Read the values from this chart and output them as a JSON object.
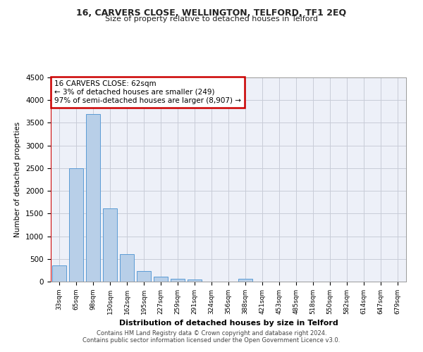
{
  "title": "16, CARVERS CLOSE, WELLINGTON, TELFORD, TF1 2EQ",
  "subtitle": "Size of property relative to detached houses in Telford",
  "xlabel": "Distribution of detached houses by size in Telford",
  "ylabel": "Number of detached properties",
  "categories": [
    "33sqm",
    "65sqm",
    "98sqm",
    "130sqm",
    "162sqm",
    "195sqm",
    "227sqm",
    "259sqm",
    "291sqm",
    "324sqm",
    "356sqm",
    "388sqm",
    "421sqm",
    "453sqm",
    "485sqm",
    "518sqm",
    "550sqm",
    "582sqm",
    "614sqm",
    "647sqm",
    "679sqm"
  ],
  "values": [
    360,
    2500,
    3700,
    1620,
    600,
    235,
    110,
    65,
    40,
    0,
    0,
    55,
    0,
    0,
    0,
    0,
    0,
    0,
    0,
    0,
    0
  ],
  "bar_color": "#b8cfe8",
  "bar_edge_color": "#5b9bd5",
  "vline_color": "#cc0000",
  "annotation_line1": "16 CARVERS CLOSE: 62sqm",
  "annotation_line2": "← 3% of detached houses are smaller (249)",
  "annotation_line3": "97% of semi-detached houses are larger (8,907) →",
  "annotation_box_color": "#cc0000",
  "ylim": [
    0,
    4500
  ],
  "yticks": [
    0,
    500,
    1000,
    1500,
    2000,
    2500,
    3000,
    3500,
    4000,
    4500
  ],
  "background_color": "#edf0f8",
  "grid_color": "#c8ccd8",
  "footer_line1": "Contains HM Land Registry data © Crown copyright and database right 2024.",
  "footer_line2": "Contains public sector information licensed under the Open Government Licence v3.0."
}
